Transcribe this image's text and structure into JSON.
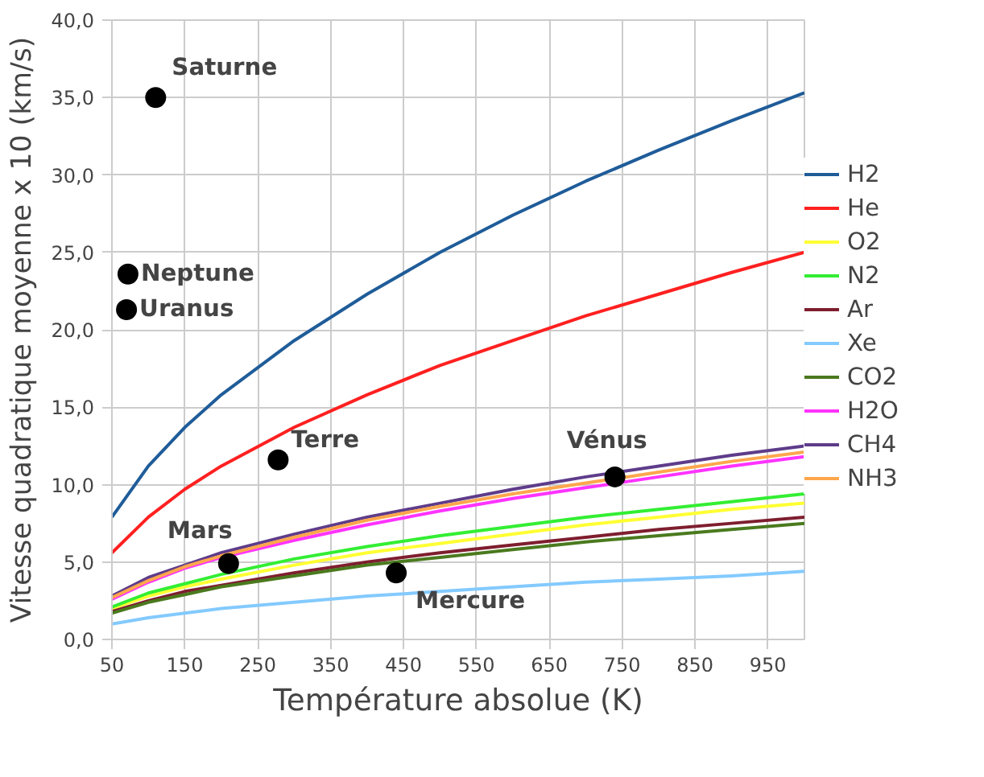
{
  "chart_data": {
    "type": "line",
    "xlabel": "Température absolue (K)",
    "ylabel": "Vitesse quadratique moyenne x 10 (km/s)",
    "x": [
      50,
      100,
      150,
      200,
      300,
      400,
      500,
      600,
      700,
      800,
      900,
      1000
    ],
    "xlim": [
      50,
      1000
    ],
    "xticks": [
      50,
      150,
      250,
      350,
      450,
      550,
      650,
      750,
      850,
      950
    ],
    "ylim": [
      0,
      40
    ],
    "yticks": [
      {
        "value": 0,
        "label": "0,0"
      },
      {
        "value": 5,
        "label": "5,0"
      },
      {
        "value": 10,
        "label": "10,0"
      },
      {
        "value": 15,
        "label": "15,0"
      },
      {
        "value": 20,
        "label": "20,0"
      },
      {
        "value": 25,
        "label": "25,0"
      },
      {
        "value": 30,
        "label": "30,0"
      },
      {
        "value": 35,
        "label": "35,0"
      },
      {
        "value": 40,
        "label": "40,0"
      }
    ],
    "grid": true,
    "legend": "right",
    "marker": "none",
    "line_style": "solid",
    "series": [
      {
        "name": "H2",
        "color": "#1f5c99",
        "values": [
          7.9,
          11.2,
          13.7,
          15.8,
          19.3,
          22.3,
          25.0,
          27.4,
          29.6,
          31.6,
          33.5,
          35.3
        ]
      },
      {
        "name": "He",
        "color": "#ff2020",
        "values": [
          5.6,
          7.9,
          9.7,
          11.2,
          13.7,
          15.8,
          17.7,
          19.3,
          20.9,
          22.3,
          23.7,
          25.0
        ]
      },
      {
        "name": "O2",
        "color": "#ffff33",
        "values": [
          2.0,
          2.8,
          3.4,
          3.9,
          4.8,
          5.6,
          6.2,
          6.8,
          7.4,
          7.9,
          8.4,
          8.8
        ]
      },
      {
        "name": "N2",
        "color": "#33ee33",
        "values": [
          2.1,
          3.0,
          3.6,
          4.2,
          5.2,
          6.0,
          6.7,
          7.3,
          7.9,
          8.4,
          8.9,
          9.4
        ]
      },
      {
        "name": "Ar",
        "color": "#7e1e2e",
        "values": [
          1.8,
          2.5,
          3.1,
          3.5,
          4.3,
          5.0,
          5.6,
          6.1,
          6.6,
          7.1,
          7.5,
          7.9
        ]
      },
      {
        "name": "Xe",
        "color": "#83caff",
        "values": [
          1.0,
          1.4,
          1.7,
          2.0,
          2.4,
          2.8,
          3.1,
          3.4,
          3.7,
          3.9,
          4.1,
          4.4
        ]
      },
      {
        "name": "CO2",
        "color": "#4a7a1e",
        "values": [
          1.7,
          2.4,
          2.9,
          3.4,
          4.1,
          4.8,
          5.3,
          5.8,
          6.3,
          6.7,
          7.1,
          7.5
        ]
      },
      {
        "name": "H2O",
        "color": "#ff33ff",
        "values": [
          2.6,
          3.7,
          4.6,
          5.3,
          6.4,
          7.4,
          8.3,
          9.1,
          9.8,
          10.5,
          11.2,
          11.8
        ]
      },
      {
        "name": "CH4",
        "color": "#5e3c8a",
        "values": [
          2.8,
          4.0,
          4.8,
          5.6,
          6.8,
          7.9,
          8.8,
          9.7,
          10.5,
          11.2,
          11.9,
          12.5
        ]
      },
      {
        "name": "NH3",
        "color": "#ffa64d",
        "values": [
          2.7,
          3.8,
          4.7,
          5.4,
          6.6,
          7.7,
          8.6,
          9.4,
          10.1,
          10.8,
          11.5,
          12.1
        ]
      },
      {
        "type": "scatter",
        "marker": "circle",
        "color": "#000000",
        "x": [
          110,
          72,
          70,
          278,
          210,
          440,
          740
        ],
        "values": [
          35.0,
          23.6,
          21.3,
          11.6,
          4.9,
          4.3,
          10.5
        ]
      }
    ],
    "annotations": [
      {
        "text": "Saturne",
        "x": 110,
        "y": 35.0
      },
      {
        "text": "Neptune",
        "x": 72,
        "y": 23.6
      },
      {
        "text": "Uranus",
        "x": 70,
        "y": 21.3
      },
      {
        "text": "Terre",
        "x": 278,
        "y": 11.6
      },
      {
        "text": "Mars",
        "x": 210,
        "y": 4.9
      },
      {
        "text": "Mercure",
        "x": 440,
        "y": 4.3
      },
      {
        "text": "Vénus",
        "x": 740,
        "y": 10.5
      }
    ]
  }
}
